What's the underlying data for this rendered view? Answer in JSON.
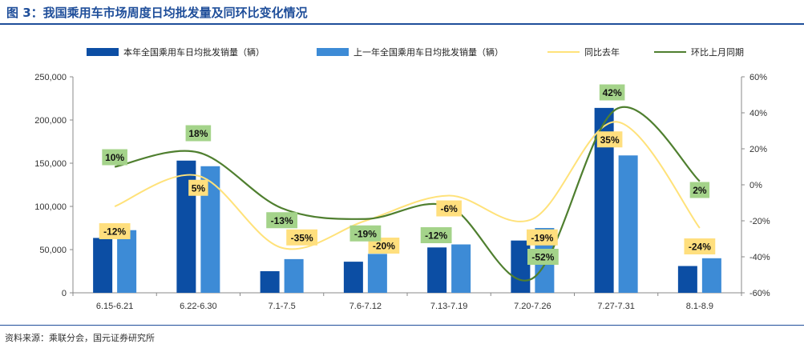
{
  "header": {
    "title": "图 3：我国乘用车市场周度日均批发量及同环比变化情况"
  },
  "footer": {
    "source": "资料来源：乘联分会，国元证券研究所"
  },
  "colors": {
    "series_current": "#0c4ea4",
    "series_prev": "#3d8bd6",
    "yoy_line": "#ffe27a",
    "mom_line": "#4f7f2f",
    "yoy_label_bg": "#ffdf7e",
    "mom_label_bg": "#a4d38a",
    "title": "#1f4e9a"
  },
  "chart_data": {
    "type": "bar",
    "categories": [
      "6.15-6.21",
      "6.22-6.30",
      "7.1-7.5",
      "7.6-7.12",
      "7.13-7.19",
      "7.20-7.26",
      "7.27-7.31",
      "8.1-8.9"
    ],
    "series": [
      {
        "name": "本年全国乘用车日均批发销量（辆）",
        "type": "bar",
        "axis": "left",
        "values": [
          63500,
          153000,
          25000,
          36000,
          52500,
          60500,
          214000,
          31000
        ]
      },
      {
        "name": "上一年全国乘用车日均批发销量（辆）",
        "type": "bar",
        "axis": "left",
        "values": [
          72500,
          146500,
          39000,
          45000,
          56000,
          75000,
          159000,
          40000
        ]
      },
      {
        "name": "同比去年",
        "type": "line",
        "axis": "right",
        "values": [
          -12,
          5,
          -35,
          -20,
          -6,
          -19,
          35,
          -24
        ],
        "labels": [
          "-12%",
          "5%",
          "-35%",
          "-20%",
          "-6%",
          "-19%",
          "35%",
          "-24%"
        ]
      },
      {
        "name": "环比上月同期",
        "type": "line",
        "axis": "right",
        "values": [
          10,
          18,
          -13,
          -19,
          -12,
          -52,
          42,
          2
        ],
        "labels": [
          "10%",
          "18%",
          "-13%",
          "-19%",
          "-12%",
          "-52%",
          "42%",
          "2%"
        ]
      }
    ],
    "y_left": {
      "min": 0,
      "max": 250000,
      "ticks": [
        "0",
        "50,000",
        "100,000",
        "150,000",
        "200,000",
        "250,000"
      ]
    },
    "y_right": {
      "min": -60,
      "max": 60,
      "ticks": [
        "-60%",
        "-40%",
        "-20%",
        "0%",
        "20%",
        "40%",
        "60%"
      ]
    },
    "legend_position": "top",
    "grid": false
  }
}
